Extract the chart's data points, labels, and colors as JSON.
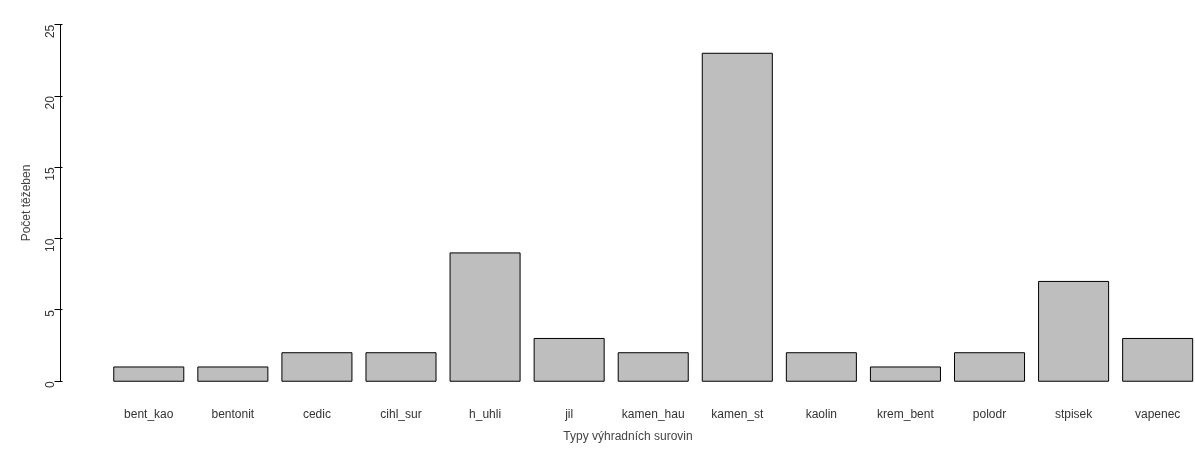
{
  "chart_data": {
    "type": "bar",
    "xlabel": "Typy výhradních surovin",
    "ylabel": "Počet těžeben",
    "categories": [
      "bent_kao",
      "bentonit",
      "cedic",
      "cihl_sur",
      "h_uhli",
      "jil",
      "kamen_hau",
      "kamen_st",
      "kaolin",
      "krem_bent",
      "polodr",
      "stpisek",
      "vapenec"
    ],
    "values": [
      1,
      1,
      2,
      2,
      9,
      3,
      2,
      23,
      2,
      1,
      2,
      7,
      3
    ],
    "color": "#bebebe",
    "ylim": [
      0,
      25
    ],
    "yticks": [
      0,
      5,
      10,
      15,
      20,
      25
    ],
    "grid": false
  }
}
